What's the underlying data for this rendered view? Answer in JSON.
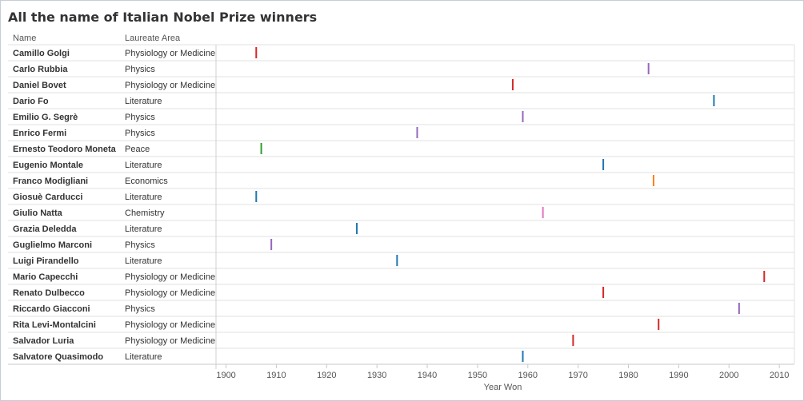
{
  "header": {
    "title": "All the name of Italian Nobel Prize winners",
    "col_name": "Name",
    "col_area": "Laureate Area"
  },
  "colors": {
    "Physiology or Medicine": "#d62728",
    "Physics": "#9467bd",
    "Literature": "#1f77b4",
    "Peace": "#2ca02c",
    "Economics": "#ff7f0e",
    "Chemistry": "#e377c2"
  },
  "chart_data": {
    "type": "scatter",
    "title": "All the name of Italian Nobel Prize winners",
    "xlabel": "Year Won",
    "xlim": [
      1898,
      2013
    ],
    "xticks": [
      1900,
      1910,
      1920,
      1930,
      1940,
      1950,
      1960,
      1970,
      1980,
      1990,
      2000,
      2010
    ],
    "rows": [
      {
        "name": "Camillo Golgi",
        "area": "Physiology or Medicine",
        "year": 1906
      },
      {
        "name": "Carlo Rubbia",
        "area": "Physics",
        "year": 1984
      },
      {
        "name": "Daniel Bovet",
        "area": "Physiology or Medicine",
        "year": 1957
      },
      {
        "name": "Dario Fo",
        "area": "Literature",
        "year": 1997
      },
      {
        "name": "Emilio G. Segrè",
        "area": "Physics",
        "year": 1959
      },
      {
        "name": "Enrico Fermi",
        "area": "Physics",
        "year": 1938
      },
      {
        "name": "Ernesto Teodoro Moneta",
        "area": "Peace",
        "year": 1907
      },
      {
        "name": "Eugenio Montale",
        "area": "Literature",
        "year": 1975
      },
      {
        "name": "Franco Modigliani",
        "area": "Economics",
        "year": 1985
      },
      {
        "name": "Giosuè Carducci",
        "area": "Literature",
        "year": 1906
      },
      {
        "name": "Giulio Natta",
        "area": "Chemistry",
        "year": 1963
      },
      {
        "name": "Grazia Deledda",
        "area": "Literature",
        "year": 1926
      },
      {
        "name": "Guglielmo Marconi",
        "area": "Physics",
        "year": 1909
      },
      {
        "name": "Luigi Pirandello",
        "area": "Literature",
        "year": 1934
      },
      {
        "name": "Mario Capecchi",
        "area": "Physiology or Medicine",
        "year": 2007
      },
      {
        "name": "Renato Dulbecco",
        "area": "Physiology or Medicine",
        "year": 1975
      },
      {
        "name": "Riccardo Giacconi",
        "area": "Physics",
        "year": 2002
      },
      {
        "name": "Rita Levi-Montalcini",
        "area": "Physiology or Medicine",
        "year": 1986
      },
      {
        "name": "Salvador Luria",
        "area": "Physiology or Medicine",
        "year": 1969
      },
      {
        "name": "Salvatore Quasimodo",
        "area": "Literature",
        "year": 1959
      }
    ]
  }
}
